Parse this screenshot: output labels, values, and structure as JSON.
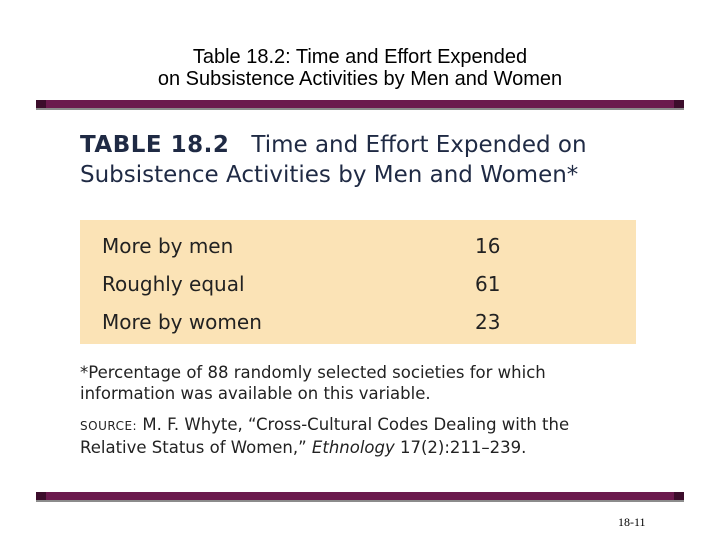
{
  "slide": {
    "title_line1": "Table 18.2: Time and Effort Expended",
    "title_line2": "on Subsistence Activities by Men and Women",
    "number": "18-11",
    "accent_color": "#6b1a4d"
  },
  "table": {
    "label": "TABLE 18.2",
    "heading_line1": "Time and Effort Expended on",
    "heading_line2": "Subsistence Activities by Men and Women*",
    "background_color": "#fbe3b6",
    "rows": [
      {
        "label": "More by men",
        "value": "16"
      },
      {
        "label": "Roughly equal",
        "value": "61"
      },
      {
        "label": "More by women",
        "value": "23"
      }
    ],
    "footnote_line1": "*Percentage of 88 randomly selected societies for which",
    "footnote_line2": "information was available on this variable.",
    "source_label": "SOURCE:",
    "source_text1": " M. F. Whyte, “Cross-Cultural Codes Dealing with the",
    "source_text2": "Relative Status of Women,” ",
    "source_journal": "Ethnology",
    "source_citation": " 17(2):211–239."
  }
}
